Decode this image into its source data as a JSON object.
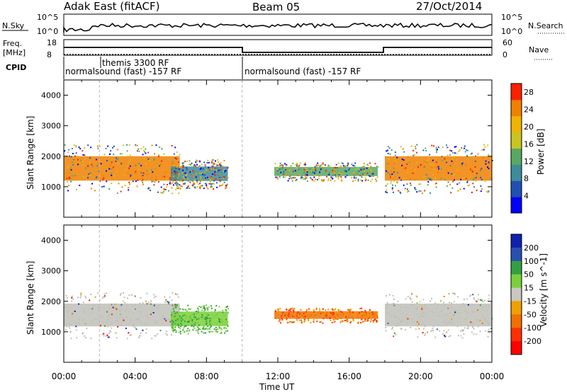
{
  "header": {
    "site": "Adak East (fitACF)",
    "beam": "Beam 05",
    "date": "27/Oct/2014"
  },
  "strip": {
    "nsky_label": "N.Sky",
    "nsky_ticks": [
      "10^5",
      "10^0"
    ],
    "nsearch_label": "N.Search",
    "nsearch_ticks": [
      "10^5",
      "10^0"
    ],
    "freq_label": "Freq.",
    "freq_unit": "[MHz]",
    "freq_ticks": [
      "18",
      "8"
    ],
    "nave_label": "Nave",
    "nave_ticks": [
      "60",
      "0"
    ],
    "cpid_label": "CPID",
    "cpid_segments": [
      "normalsound (fast) -157 RF",
      "themis 3300 RF",
      "normalsound (fast) -157 RF"
    ]
  },
  "colors": {
    "power_scale": [
      "#0000ff",
      "#214fb3",
      "#3c8c9a",
      "#58a864",
      "#c9c421",
      "#f0b400",
      "#f08000",
      "#ff2000"
    ],
    "velocity_scale": [
      "#1020b0",
      "#2a4fb3",
      "#32a040",
      "#7ad03a",
      "#c8c8c0",
      "#f0a000",
      "#f07000",
      "#ff3000",
      "#ff0000"
    ],
    "ground_scatter": "#c0c0b8"
  },
  "chart_data": [
    {
      "type": "heatmap",
      "title": "",
      "xlabel": "Time UT",
      "ylabel": "Slant Range [km]",
      "xlim_hours": [
        0,
        24
      ],
      "ylim": [
        0,
        4500
      ],
      "xticks": [
        "00:00",
        "04:00",
        "08:00",
        "12:00",
        "16:00",
        "20:00",
        "00:00"
      ],
      "yticks": [
        1000,
        2000,
        3000,
        4000
      ],
      "colorbar_label": "Power [dB]",
      "colorbar_ticks": [
        4,
        8,
        12,
        16,
        20,
        24,
        28
      ],
      "colorbar_range": [
        0,
        30
      ],
      "echo_regions": [
        {
          "t_start": 0,
          "t_end": 6.5,
          "range_min": 800,
          "range_max": 2400,
          "power_db": 26
        },
        {
          "t_start": 6.0,
          "t_end": 9.2,
          "range_min": 950,
          "range_max": 1900,
          "power_db": 10
        },
        {
          "t_start": 11.8,
          "t_end": 17.6,
          "range_min": 1200,
          "range_max": 1800,
          "power_db": 14
        },
        {
          "t_start": 18.0,
          "t_end": 24.0,
          "range_min": 800,
          "range_max": 2400,
          "power_db": 26
        }
      ]
    },
    {
      "type": "heatmap",
      "title": "",
      "xlabel": "Time UT",
      "ylabel": "Slant Range [km]",
      "xlim_hours": [
        0,
        24
      ],
      "ylim": [
        0,
        4500
      ],
      "xticks": [
        "00:00",
        "04:00",
        "08:00",
        "12:00",
        "16:00",
        "20:00",
        "00:00"
      ],
      "yticks": [
        1000,
        2000,
        3000,
        4000
      ],
      "colorbar_label": "Velocity [m s^-1]",
      "colorbar_ticks": [
        200,
        100,
        50,
        15,
        -15,
        -50,
        -100,
        -200
      ],
      "echo_regions": [
        {
          "t_start": 0,
          "t_end": 6.5,
          "range_min": 800,
          "range_max": 2300,
          "velocity": 0
        },
        {
          "t_start": 6.0,
          "t_end": 9.2,
          "range_min": 950,
          "range_max": 1900,
          "velocity": 60
        },
        {
          "t_start": 11.8,
          "t_end": 17.6,
          "range_min": 1300,
          "range_max": 1800,
          "velocity": -60
        },
        {
          "t_start": 18.0,
          "t_end": 24.0,
          "range_min": 800,
          "range_max": 2300,
          "velocity": 0
        }
      ]
    }
  ]
}
